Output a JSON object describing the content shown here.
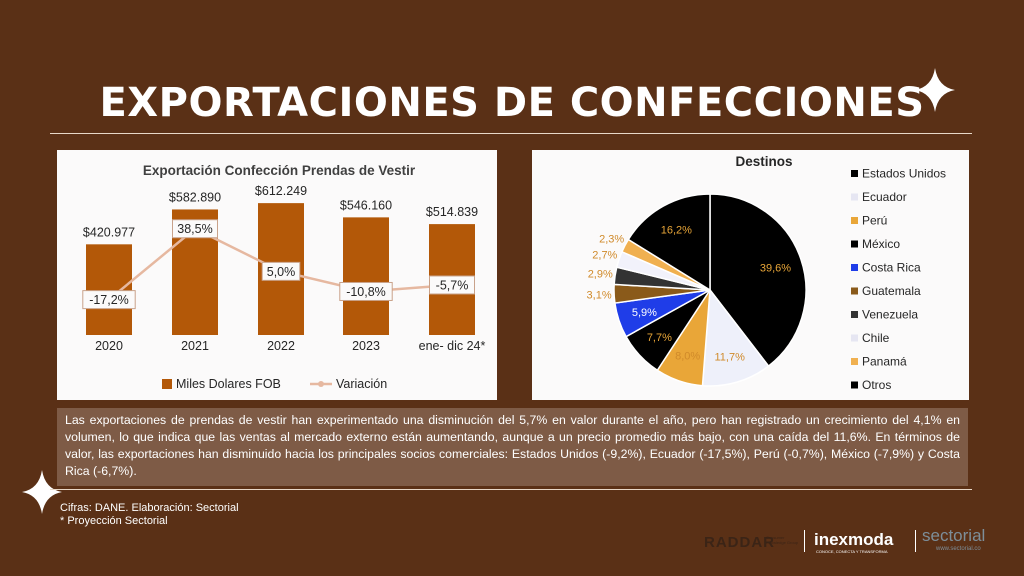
{
  "page": {
    "title": "EXPORTACIONES DE CONFECCIONES",
    "summary": "Las exportaciones de prendas de vestir han experimentado una disminución del 5,7% en valor durante el año, pero han registrado un crecimiento del 4,1% en volumen, lo que indica que las ventas al mercado externo están aumentando, aunque a un precio promedio más bajo, con una caída del 11,6%. En términos de valor, las exportaciones han disminuido hacia los principales socios comerciales: Estados Unidos (-9,2%), Ecuador (-17,5%), Perú (-0,7%), México (-7,9%) y Costa Rica (-6,7%).",
    "source": "Cifras: DANE. Elaboración: Sectorial",
    "footnote": "* Proyección Sectorial",
    "logos": {
      "raddar": "RADDAR",
      "raddar_sub": "Consumer Knowledge Group",
      "inexmoda": "inexmoda",
      "inexmoda_sub": "CONOCE, CONECTA Y TRANSFORMA",
      "sectorial": "sectorial",
      "sectorial_sub": "www.sectorial.co"
    },
    "colors": {
      "background": "#5a3016",
      "bar": "#b35808",
      "line": "#e6b8a0"
    }
  },
  "chart_data": [
    {
      "type": "bar",
      "title": "Exportación Confección Prendas de Vestir",
      "categories": [
        "2020",
        "2021",
        "2022",
        "2023",
        "ene- dic 24*"
      ],
      "series": [
        {
          "name": "Miles Dolares FOB",
          "kind": "bar",
          "values": [
            420977,
            582890,
            612249,
            546160,
            514839
          ],
          "labels": [
            "$420.977",
            "$582.890",
            "$612.249",
            "$546.160",
            "$514.839"
          ]
        },
        {
          "name": "Variación",
          "kind": "line",
          "values": [
            -17.2,
            38.5,
            5.0,
            -10.8,
            -5.7
          ],
          "labels": [
            "-17,2%",
            "38,5%",
            "5,0%",
            "-10,8%",
            "-5,7%"
          ]
        }
      ],
      "ylim": [
        0,
        650000
      ],
      "y2lim": [
        -45,
        65
      ],
      "legend": "bottom"
    },
    {
      "type": "pie",
      "title": "Destinos",
      "slices": [
        {
          "name": "Estados Unidos",
          "value": 39.6,
          "label": "39,6%",
          "color": "#000000"
        },
        {
          "name": "Ecuador",
          "value": 11.7,
          "label": "11,7%",
          "color": "#eef0fa"
        },
        {
          "name": "Perú",
          "value": 8.0,
          "label": "8,0%",
          "color": "#e9a638"
        },
        {
          "name": "México",
          "value": 7.7,
          "label": "7,7%",
          "color": "#000000"
        },
        {
          "name": "Costa Rica",
          "value": 5.9,
          "label": "5,9%",
          "color": "#1f3de8"
        },
        {
          "name": "Guatemala",
          "value": 3.1,
          "label": "3,1%",
          "color": "#8a5a1a"
        },
        {
          "name": "Venezuela",
          "value": 2.9,
          "label": "2,9%",
          "color": "#333333"
        },
        {
          "name": "Chile",
          "value": 2.7,
          "label": "2,7%",
          "color": "#f2f2fb"
        },
        {
          "name": "Panamá",
          "value": 2.3,
          "label": "2,3%",
          "color": "#f0b050"
        },
        {
          "name": "Otros",
          "value": 16.2,
          "label": "16,2%",
          "color": "#000000"
        }
      ],
      "legend": "right"
    }
  ]
}
